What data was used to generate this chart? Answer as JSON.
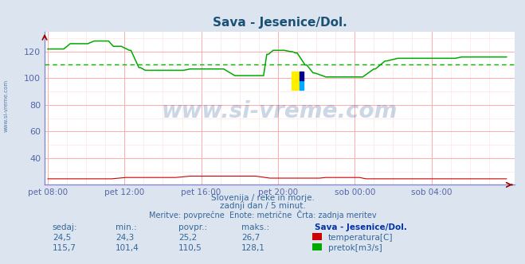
{
  "title": "Sava - Jesenice/Dol.",
  "title_color": "#1a5276",
  "bg_color": "#dce4f0",
  "plot_bg_color": "#ffffff",
  "grid_color_major": "#ffaaaa",
  "grid_color_minor": "#ffe0e0",
  "tick_color": "#5566aa",
  "text_color": "#336699",
  "watermark": "www.si-vreme.com",
  "watermark_color": "#1a4a8a",
  "subtitle_lines": [
    "Slovenija / reke in morje.",
    "zadnji dan / 5 minut.",
    "Meritve: povprečne  Enote: metrične  Črta: zadnja meritev"
  ],
  "xtick_labels": [
    "pet 08:00",
    "pet 12:00",
    "pet 16:00",
    "pet 20:00",
    "sob 00:00",
    "sob 04:00"
  ],
  "xtick_positions": [
    0,
    48,
    96,
    144,
    192,
    240
  ],
  "ylim": [
    20,
    135
  ],
  "yticks": [
    40,
    60,
    80,
    100,
    120
  ],
  "ytick_labels": [
    "40",
    "60",
    "80",
    "100",
    "120"
  ],
  "total_points": 288,
  "temp_color": "#cc0000",
  "flow_color": "#00aa00",
  "avg_flow_color": "#00bb00",
  "avg_flow_value": 110.5,
  "spine_color": "#8888cc",
  "arrow_color": "#990000",
  "table_headers": [
    "sedaj:",
    "min.:",
    "povpr.:",
    "maks.:",
    "Sava - Jesenice/Dol."
  ],
  "table_row1": [
    "24,5",
    "24,3",
    "25,2",
    "26,7",
    "temperatura[C]"
  ],
  "table_row2": [
    "115,7",
    "101,4",
    "110,5",
    "128,1",
    "pretok[m3/s]"
  ],
  "table_color": "#336699",
  "table_header_color": "#0033aa",
  "legend_color1": "#cc0000",
  "legend_color2": "#00aa00",
  "side_label": "www.si-vreme.com",
  "side_label_color": "#336699"
}
